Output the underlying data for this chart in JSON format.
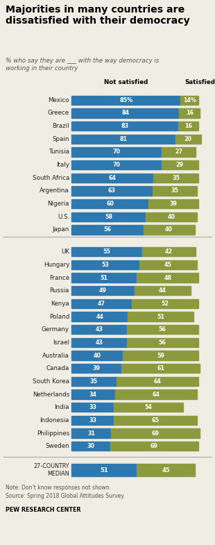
{
  "title": "Majorities in many countries are\ndissatisfied with their democracy",
  "subtitle": "% who say they are ___ with the way democracy is\nworking in their country",
  "countries": [
    "Mexico",
    "Greece",
    "Brazil",
    "Spain",
    "Tunisia",
    "Italy",
    "South Africa",
    "Argentina",
    "Nigeria",
    "U.S.",
    "Japan",
    "UK",
    "Hungary",
    "France",
    "Russia",
    "Kenya",
    "Poland",
    "Germany",
    "Israel",
    "Australia",
    "Canada",
    "South Korea",
    "Netherlands",
    "India",
    "Indonesia",
    "Philippines",
    "Sweden"
  ],
  "not_satisfied": [
    85,
    84,
    83,
    81,
    70,
    70,
    64,
    63,
    60,
    58,
    56,
    55,
    53,
    51,
    49,
    47,
    44,
    43,
    43,
    40,
    39,
    35,
    34,
    33,
    33,
    31,
    30
  ],
  "satisfied": [
    14,
    16,
    16,
    20,
    27,
    29,
    35,
    35,
    39,
    40,
    40,
    42,
    45,
    48,
    44,
    52,
    51,
    56,
    56,
    59,
    61,
    64,
    64,
    54,
    65,
    69,
    69
  ],
  "median_not_satisfied": 51,
  "median_satisfied": 45,
  "median_label": "27-COUNTRY\nMEDIAN",
  "not_satisfied_color": "#2e78b0",
  "satisfied_color": "#8a9a3c",
  "note": "Note: Don’t know responses not shown.\nSource: Spring 2018 Global Attitudes Survey.",
  "source_bold": "PEW RESEARCH CENTER",
  "divider_after_idx": 11,
  "bg_color": "#f0ede5"
}
